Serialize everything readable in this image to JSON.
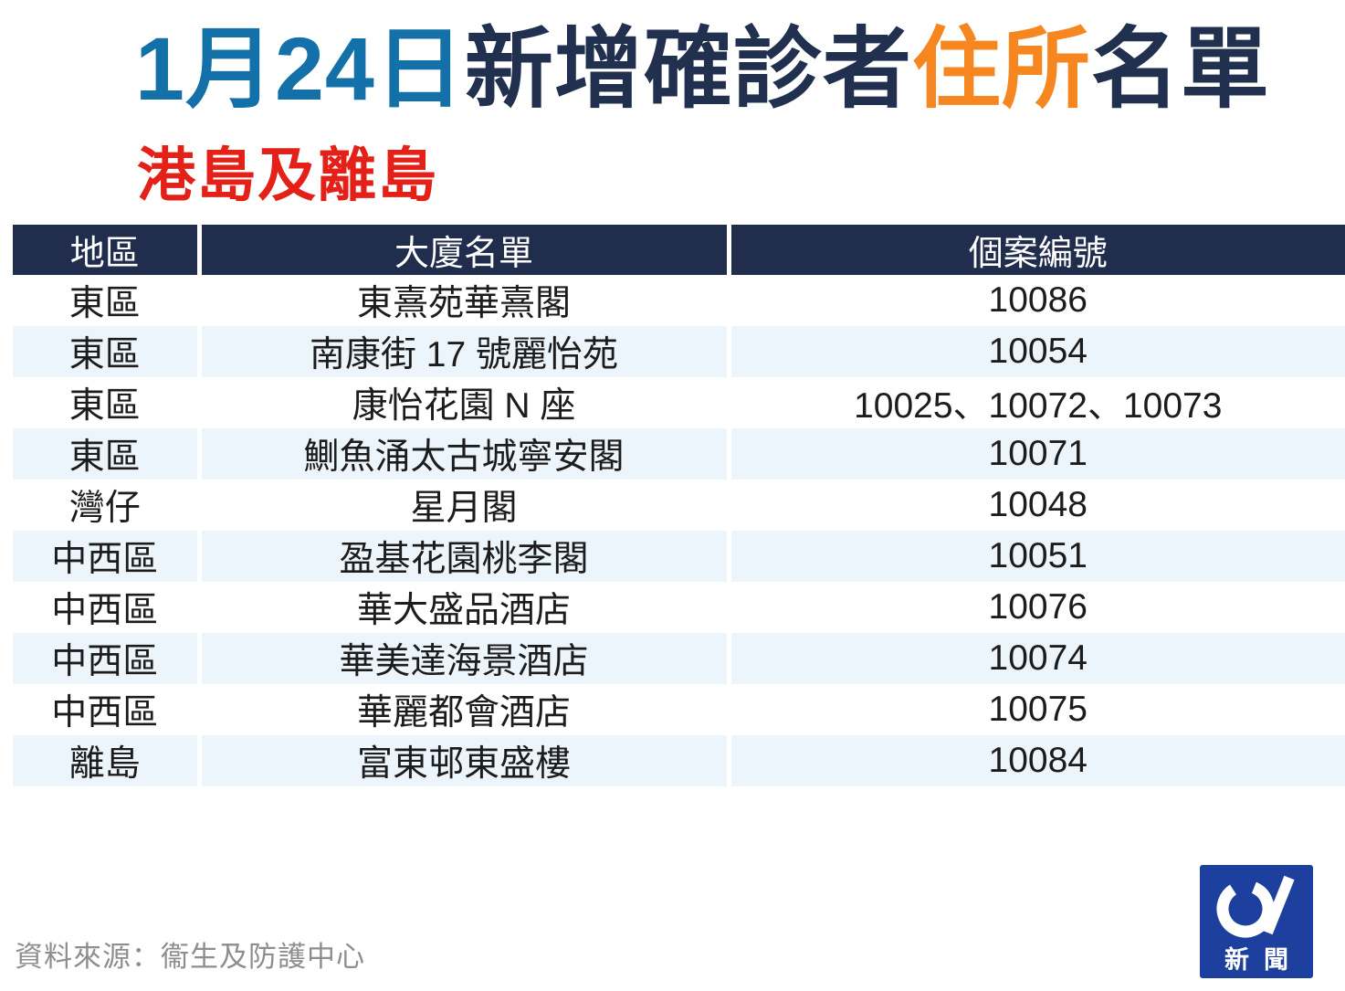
{
  "title": {
    "date": "1月24日",
    "segment_new_cases": "新增確診者",
    "segment_residence": "住所",
    "segment_list": "名單",
    "subtitle": "港島及離島"
  },
  "table": {
    "headers": [
      "地區",
      "大廈名單",
      "個案編號"
    ],
    "rows": [
      {
        "district": "東區",
        "building": "東熹苑華熹閣",
        "cases": "10086"
      },
      {
        "district": "東區",
        "building": "南康街 17 號麗怡苑",
        "cases": "10054"
      },
      {
        "district": "東區",
        "building": "康怡花園 N 座",
        "cases": "10025、10072、10073"
      },
      {
        "district": "東區",
        "building": "鰂魚涌太古城寧安閣",
        "cases": "10071"
      },
      {
        "district": "灣仔",
        "building": "星月閣",
        "cases": "10048"
      },
      {
        "district": "中西區",
        "building": "盈基花園桃李閣",
        "cases": "10051"
      },
      {
        "district": "中西區",
        "building": "華大盛品酒店",
        "cases": "10076"
      },
      {
        "district": "中西區",
        "building": "華美達海景酒店",
        "cases": "10074"
      },
      {
        "district": "中西區",
        "building": "華麗都會酒店",
        "cases": "10075"
      },
      {
        "district": "離島",
        "building": "富東邨東盛樓",
        "cases": "10084"
      }
    ]
  },
  "chart_data": {
    "type": "table",
    "title": "1月24日新增確診者住所名單 港島及離島",
    "columns": [
      "地區",
      "大廈名單",
      "個案編號"
    ],
    "rows": [
      [
        "東區",
        "東熹苑華熹閣",
        "10086"
      ],
      [
        "東區",
        "南康街 17 號麗怡苑",
        "10054"
      ],
      [
        "東區",
        "康怡花園 N 座",
        "10025、10072、10073"
      ],
      [
        "東區",
        "鰂魚涌太古城寧安閣",
        "10071"
      ],
      [
        "灣仔",
        "星月閣",
        "10048"
      ],
      [
        "中西區",
        "盈基花園桃李閣",
        "10051"
      ],
      [
        "中西區",
        "華大盛品酒店",
        "10076"
      ],
      [
        "中西區",
        "華美達海景酒店",
        "10074"
      ],
      [
        "中西區",
        "華麗都會酒店",
        "10075"
      ],
      [
        "離島",
        "富東邨東盛樓",
        "10084"
      ]
    ]
  },
  "footer": {
    "source": "資料來源：衞生及防護中心"
  },
  "logo": {
    "brand_mark": "01",
    "text": "新聞"
  },
  "colors": {
    "title_blue": "#1470a8",
    "title_navy": "#21304f",
    "title_orange": "#f6861f",
    "subtitle_red": "#e32119",
    "header_bg": "#212d4c",
    "row_alt_blue": "#ecf5fb",
    "body_text": "#1c1c1c",
    "source_gray": "#8e8e8e",
    "logo_blue": "#1d3f9e"
  }
}
